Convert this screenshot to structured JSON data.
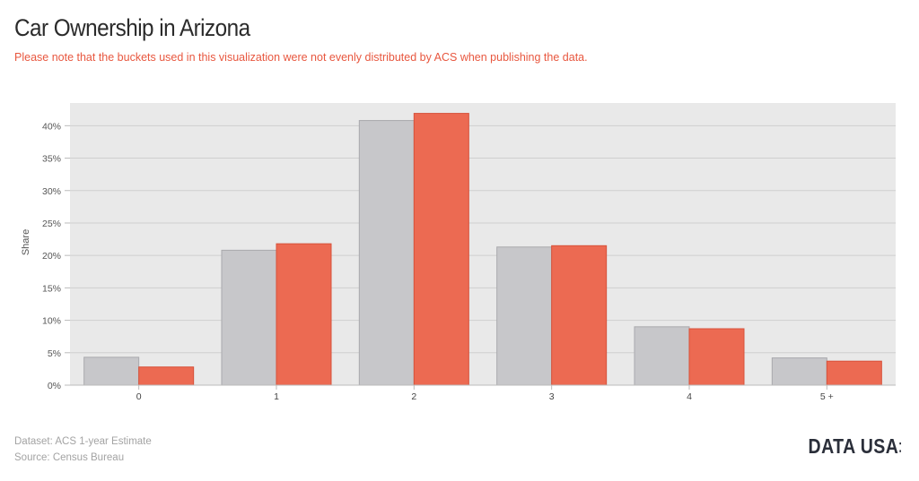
{
  "header": {
    "title": "Car Ownership in Arizona",
    "subtitle": "Please note that the buckets used in this visualization were not evenly distributed by ACS when publishing the data."
  },
  "chart_data": {
    "type": "bar",
    "title": "Car Ownership in Arizona",
    "xlabel": "",
    "ylabel": "Share",
    "categories": [
      "0",
      "1",
      "2",
      "3",
      "4",
      "5 +"
    ],
    "yticks": [
      "0%",
      "5%",
      "10%",
      "15%",
      "20%",
      "25%",
      "30%",
      "35%",
      "40%"
    ],
    "ylim": [
      0,
      43.5
    ],
    "series": [
      {
        "values": [
          4.3,
          20.8,
          40.8,
          21.3,
          9.0,
          4.2
        ],
        "color": "#c7c7ca"
      },
      {
        "values": [
          2.8,
          21.8,
          41.9,
          21.5,
          8.7,
          3.7
        ],
        "color": "#ec6a52"
      }
    ],
    "grid": true
  },
  "footer": {
    "dataset": "Dataset: ACS 1-year Estimate",
    "source": "Source: Census Bureau"
  },
  "logo": {
    "text": "DATA USA",
    "dots": "⁚"
  },
  "colors": {
    "accent": "#e8573f",
    "plot_bg": "#e9e9e9",
    "grid": "#cfcfcf"
  }
}
